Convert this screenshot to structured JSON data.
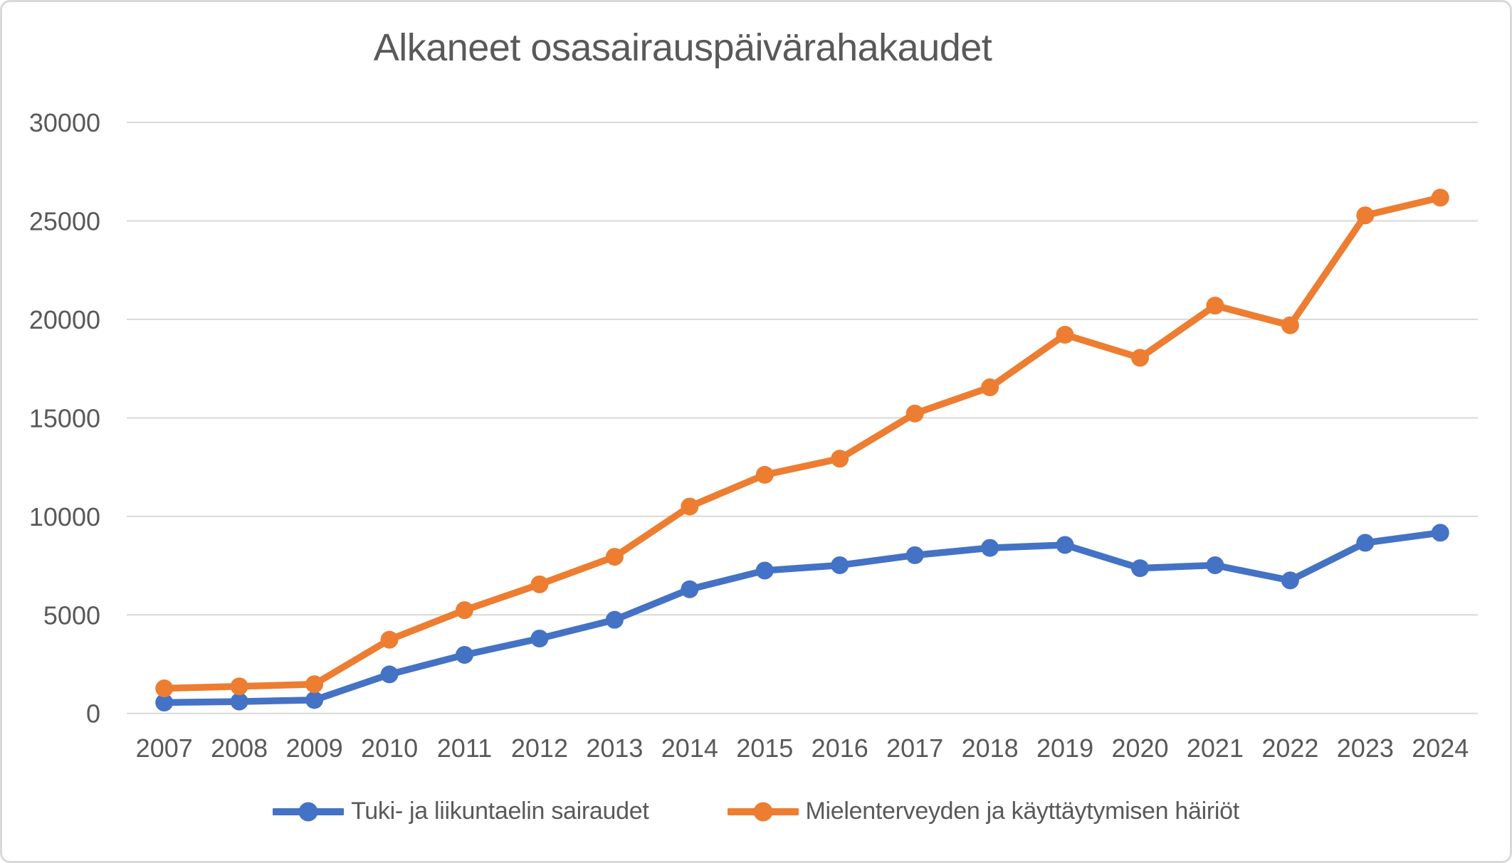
{
  "chart_data": {
    "type": "line",
    "title": "Alkaneet osasairauspäivärahakaudet",
    "xlabel": "",
    "ylabel": "",
    "grid": true,
    "legend_position": "bottom",
    "categories": [
      "2007",
      "2008",
      "2009",
      "2010",
      "2011",
      "2012",
      "2013",
      "2014",
      "2015",
      "2016",
      "2017",
      "2018",
      "2019",
      "2020",
      "2021",
      "2022",
      "2023",
      "2024"
    ],
    "series": [
      {
        "name": "Tuki- ja liikuntaelin sairaudet",
        "color": "#4472C4",
        "values": [
          550,
          600,
          680,
          1980,
          2970,
          3800,
          4750,
          6300,
          7250,
          7520,
          8030,
          8400,
          8550,
          7370,
          7520,
          6750,
          8660,
          9170
        ]
      },
      {
        "name": "Mielenterveyden ja käyttäytymisen häiriöt",
        "color": "#ED7D31",
        "values": [
          1270,
          1370,
          1480,
          3740,
          5240,
          6550,
          7950,
          10500,
          12110,
          12930,
          15220,
          16550,
          19220,
          18050,
          20700,
          19700,
          25280,
          26180
        ]
      }
    ],
    "ylim": [
      0,
      30000
    ],
    "yticks": [
      0,
      5000,
      10000,
      15000,
      20000,
      25000,
      30000
    ],
    "ytick_labels": [
      "0",
      "5000",
      "10000",
      "15000",
      "20000",
      "25000",
      "30000"
    ]
  },
  "colors": {
    "text": "#595959",
    "gridline": "#D9D9D9",
    "background": "#FFFFFF",
    "border": "#D9D9D9"
  }
}
